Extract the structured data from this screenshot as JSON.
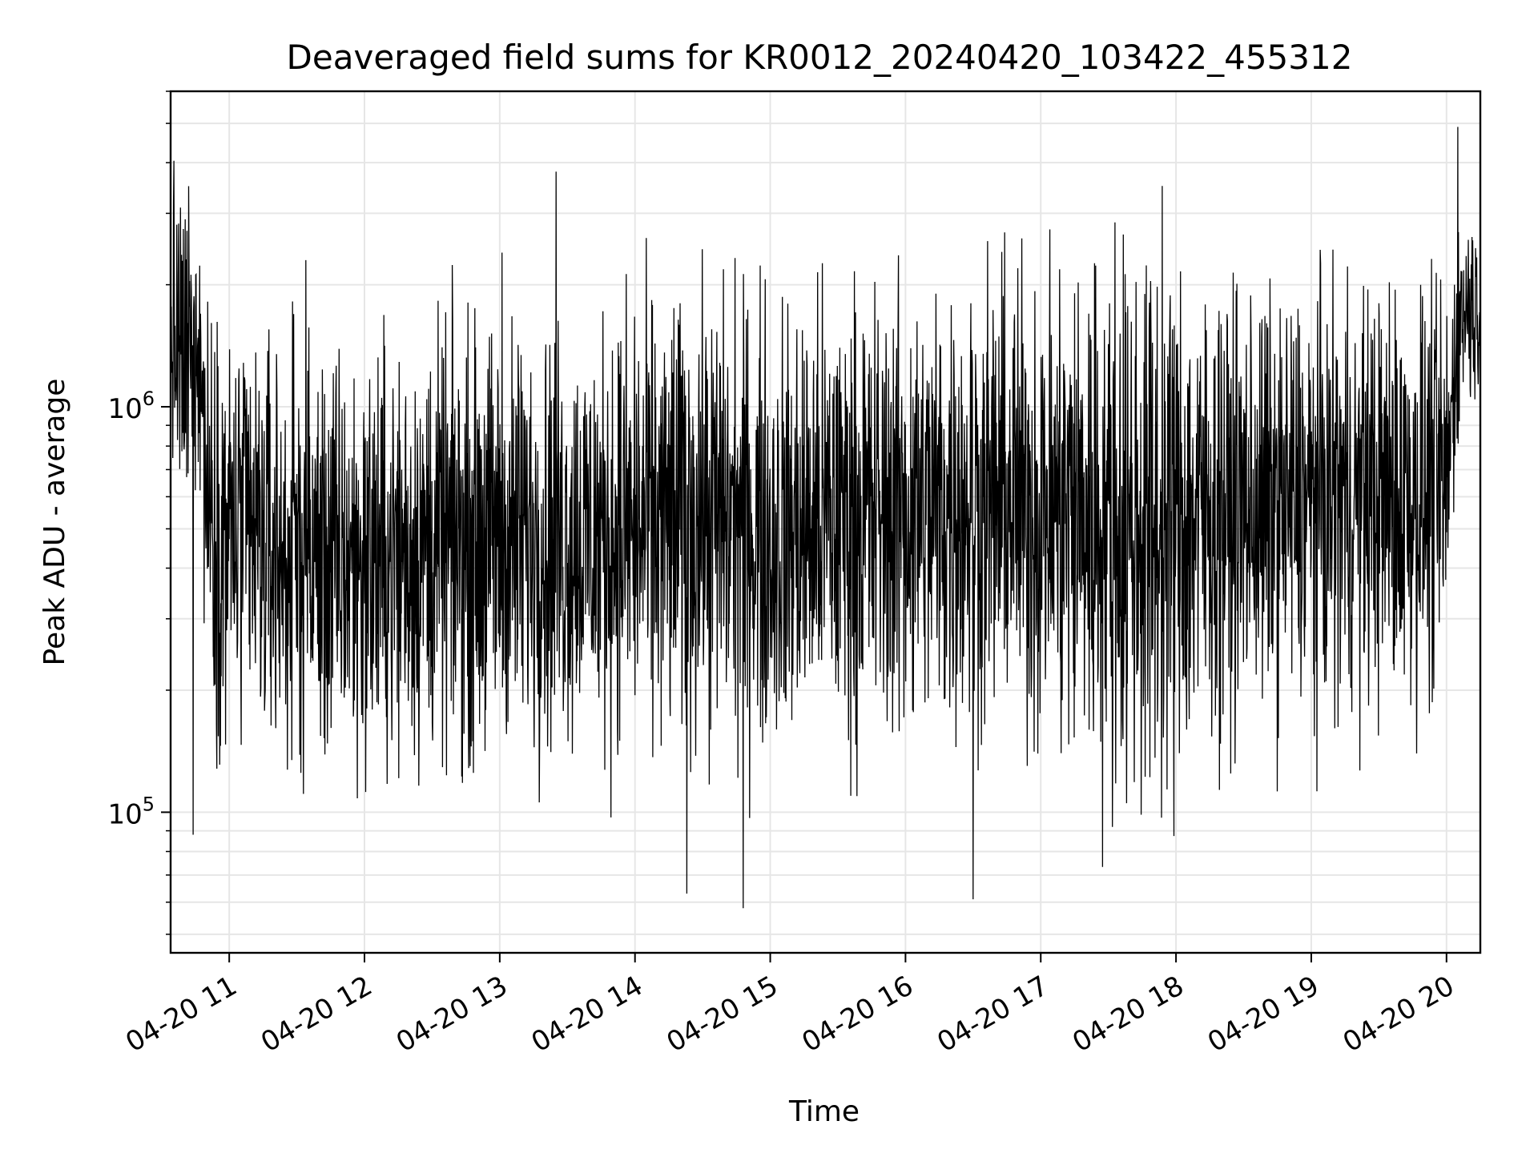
{
  "chart_data": {
    "type": "line",
    "title": "Deaveraged field sums for KR0012_20240420_103422_455312",
    "xlabel": "Time",
    "ylabel": "Peak ADU - average",
    "x_range": [
      "2024-04-20T10:34",
      "2024-04-20T20:15"
    ],
    "y_scale": "log",
    "ylim": [
      45000,
      6000000
    ],
    "grid": true,
    "line_color": "#000000",
    "grid_color": "#e6e6e6",
    "x_ticks": [
      {
        "time": "2024-04-20T11:00",
        "label": "04-20 11"
      },
      {
        "time": "2024-04-20T12:00",
        "label": "04-20 12"
      },
      {
        "time": "2024-04-20T13:00",
        "label": "04-20 13"
      },
      {
        "time": "2024-04-20T14:00",
        "label": "04-20 14"
      },
      {
        "time": "2024-04-20T15:00",
        "label": "04-20 15"
      },
      {
        "time": "2024-04-20T16:00",
        "label": "04-20 16"
      },
      {
        "time": "2024-04-20T17:00",
        "label": "04-20 17"
      },
      {
        "time": "2024-04-20T18:00",
        "label": "04-20 18"
      },
      {
        "time": "2024-04-20T19:00",
        "label": "04-20 19"
      },
      {
        "time": "2024-04-20T20:00",
        "label": "04-20 20"
      }
    ],
    "y_ticks": [
      {
        "value": 100000,
        "base": "10",
        "exp": "5"
      },
      {
        "value": 1000000,
        "base": "10",
        "exp": "6"
      }
    ],
    "series": [
      {
        "x": [
          "2024-04-20T10:34",
          "2024-04-20T10:38",
          "2024-04-20T10:42",
          "2024-04-20T10:46",
          "2024-04-20T10:50",
          "2024-04-20T10:54",
          "2024-04-20T10:58",
          "2024-04-20T11:05",
          "2024-04-20T11:15",
          "2024-04-20T11:25",
          "2024-04-20T11:35",
          "2024-04-20T11:45",
          "2024-04-20T12:00",
          "2024-04-20T12:15",
          "2024-04-20T12:30",
          "2024-04-20T12:45",
          "2024-04-20T13:00",
          "2024-04-20T13:15",
          "2024-04-20T13:30",
          "2024-04-20T13:45",
          "2024-04-20T14:00",
          "2024-04-20T14:15",
          "2024-04-20T14:30",
          "2024-04-20T14:45",
          "2024-04-20T15:00",
          "2024-04-20T15:15",
          "2024-04-20T15:30",
          "2024-04-20T15:45",
          "2024-04-20T16:00",
          "2024-04-20T16:15",
          "2024-04-20T16:30",
          "2024-04-20T16:45",
          "2024-04-20T17:00",
          "2024-04-20T17:15",
          "2024-04-20T17:30",
          "2024-04-20T17:45",
          "2024-04-20T18:00",
          "2024-04-20T18:15",
          "2024-04-20T18:30",
          "2024-04-20T18:45",
          "2024-04-20T19:00",
          "2024-04-20T19:15",
          "2024-04-20T19:30",
          "2024-04-20T19:45",
          "2024-04-20T20:00",
          "2024-04-20T20:05",
          "2024-04-20T20:10",
          "2024-04-20T20:15"
        ],
        "center": [
          1600000,
          1300000,
          1200000,
          1700000,
          650000,
          520000,
          480000,
          480000,
          450000,
          420000,
          430000,
          400000,
          420000,
          430000,
          450000,
          460000,
          470000,
          480000,
          470000,
          480000,
          500000,
          520000,
          540000,
          520000,
          480000,
          500000,
          530000,
          540000,
          550000,
          560000,
          580000,
          590000,
          560000,
          550000,
          520000,
          500000,
          520000,
          540000,
          560000,
          570000,
          580000,
          590000,
          600000,
          600000,
          620000,
          1600000,
          1800000,
          1700000
        ],
        "spread": [
          0.55,
          0.6,
          0.6,
          0.55,
          0.65,
          0.75,
          0.75,
          0.75,
          0.75,
          0.75,
          0.75,
          0.75,
          0.75,
          0.75,
          0.75,
          0.75,
          0.75,
          0.75,
          0.75,
          0.75,
          0.8,
          0.8,
          0.8,
          0.8,
          0.8,
          0.8,
          0.8,
          0.8,
          0.8,
          0.8,
          0.8,
          0.8,
          0.85,
          0.95,
          1.0,
          1.0,
          0.95,
          0.8,
          0.75,
          0.75,
          0.75,
          0.75,
          0.75,
          0.75,
          0.7,
          0.35,
          0.35,
          0.35
        ],
        "spikes": [
          {
            "time": "2024-04-20T10:42",
            "value": 3500000
          },
          {
            "time": "2024-04-20T10:44",
            "value": 88000
          },
          {
            "time": "2024-04-20T11:34",
            "value": 2300000
          },
          {
            "time": "2024-04-20T13:01",
            "value": 2400000
          },
          {
            "time": "2024-04-20T13:25",
            "value": 3800000
          },
          {
            "time": "2024-04-20T14:20",
            "value": 1800000
          },
          {
            "time": "2024-04-20T14:23",
            "value": 63000
          },
          {
            "time": "2024-04-20T14:48",
            "value": 58000
          },
          {
            "time": "2024-04-20T16:29",
            "value": 1800000
          },
          {
            "time": "2024-04-20T16:30",
            "value": 61000
          },
          {
            "time": "2024-04-20T18:20",
            "value": 1600000
          },
          {
            "time": "2024-04-20T19:30",
            "value": 1800000
          },
          {
            "time": "2024-04-20T20:05",
            "value": 4900000
          }
        ]
      }
    ]
  }
}
